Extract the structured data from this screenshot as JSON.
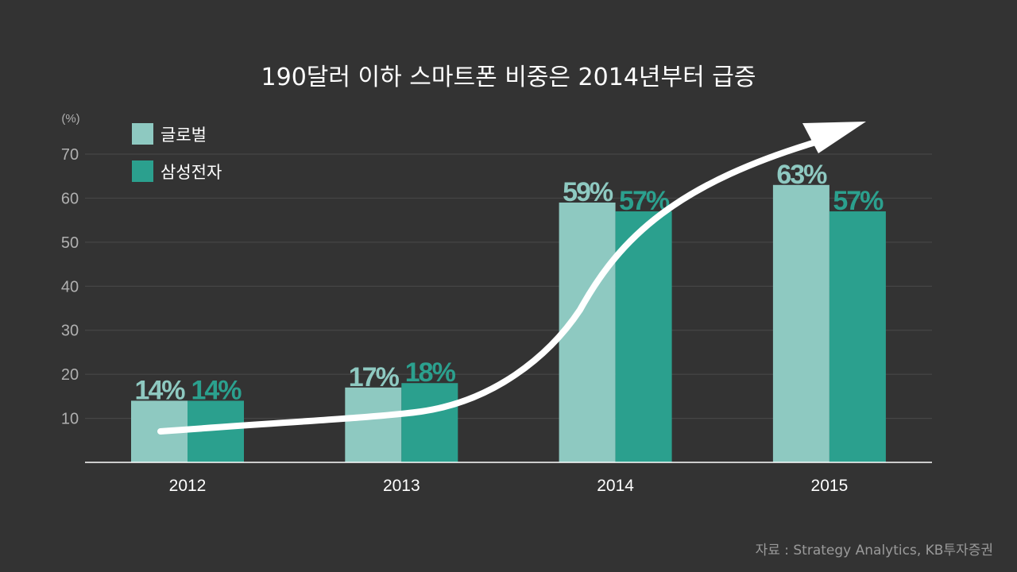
{
  "colors": {
    "background": "#333333",
    "global": "#8ec9c1",
    "samsung": "#2ba08e",
    "gridline": "#4a4a4a",
    "axis_text": "#b0b0b0",
    "arrow": "#ffffff"
  },
  "chart_data": {
    "type": "bar",
    "title": "190달러 이하 스마트폰 비중은 2014년부터 급증",
    "ylabel": "(%)",
    "xlabel": "",
    "ylim": [
      0,
      70
    ],
    "yticks": [
      10,
      20,
      30,
      40,
      50,
      60,
      70
    ],
    "grid": true,
    "legend_position": "top-left",
    "categories": [
      "2012",
      "2013",
      "2014",
      "2015"
    ],
    "series": [
      {
        "name": "글로벌",
        "values": [
          14,
          17,
          59,
          63
        ],
        "labels": [
          "14%",
          "17%",
          "59%",
          "63%"
        ]
      },
      {
        "name": "삼성전자",
        "values": [
          14,
          18,
          57,
          57
        ],
        "labels": [
          "14%",
          "18%",
          "57%",
          "57%"
        ]
      }
    ],
    "annotation": "upward trend arrow",
    "source": "자료 : Strategy Analytics, KB투자증권"
  }
}
